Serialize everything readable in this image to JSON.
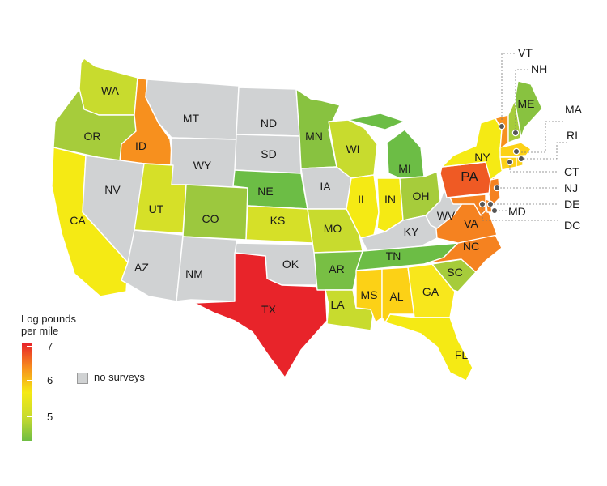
{
  "legend": {
    "title_line1": "Log pounds",
    "title_line2": "per mile",
    "ticks": [
      "7",
      "6",
      "5"
    ],
    "no_data_label": "no surveys",
    "gradient_colors": [
      "#e8242a",
      "#f7901e",
      "#f5ea14",
      "#c8db2e",
      "#6cbd45"
    ],
    "no_data_color": "#d0d2d3"
  },
  "states": {
    "WA": {
      "label": "WA",
      "color": "#c8db2e"
    },
    "OR": {
      "label": "OR",
      "color": "#a6cc3b"
    },
    "CA": {
      "label": "CA",
      "color": "#f5ea14"
    },
    "ID": {
      "label": "ID",
      "color": "#f7901e"
    },
    "NV": {
      "label": "NV",
      "color": "#d0d2d3"
    },
    "MT": {
      "label": "MT",
      "color": "#d0d2d3"
    },
    "WY": {
      "label": "WY",
      "color": "#d0d2d3"
    },
    "UT": {
      "label": "UT",
      "color": "#d6e028"
    },
    "CO": {
      "label": "CO",
      "color": "#9cc83e"
    },
    "AZ": {
      "label": "AZ",
      "color": "#d0d2d3"
    },
    "NM": {
      "label": "NM",
      "color": "#d0d2d3"
    },
    "ND": {
      "label": "ND",
      "color": "#d0d2d3"
    },
    "SD": {
      "label": "SD",
      "color": "#d0d2d3"
    },
    "NE": {
      "label": "NE",
      "color": "#6cbd45"
    },
    "KS": {
      "label": "KS",
      "color": "#d6e028"
    },
    "OK": {
      "label": "OK",
      "color": "#d0d2d3"
    },
    "TX": {
      "label": "TX",
      "color": "#e8242a"
    },
    "MN": {
      "label": "MN",
      "color": "#88c240"
    },
    "IA": {
      "label": "IA",
      "color": "#d0d2d3"
    },
    "MO": {
      "label": "MO",
      "color": "#c8db2e"
    },
    "AR": {
      "label": "AR",
      "color": "#78bf44"
    },
    "LA": {
      "label": "LA",
      "color": "#c8db2e"
    },
    "WI": {
      "label": "WI",
      "color": "#c8db2e"
    },
    "IL": {
      "label": "IL",
      "color": "#f5ea14"
    },
    "MI": {
      "label": "MI",
      "color": "#6cbd45"
    },
    "IN": {
      "label": "IN",
      "color": "#f5ea14"
    },
    "OH": {
      "label": "OH",
      "color": "#a6cc3b"
    },
    "KY": {
      "label": "KY",
      "color": "#d0d2d3"
    },
    "TN": {
      "label": "TN",
      "color": "#6cbd45"
    },
    "MS": {
      "label": "MS",
      "color": "#fcd116"
    },
    "AL": {
      "label": "AL",
      "color": "#fcd116"
    },
    "GA": {
      "label": "GA",
      "color": "#f8e71c"
    },
    "FL": {
      "label": "FL",
      "color": "#f5ea14"
    },
    "SC": {
      "label": "SC",
      "color": "#a6cc3b"
    },
    "NC": {
      "label": "NC",
      "color": "#f58220"
    },
    "VA": {
      "label": "VA",
      "color": "#f58220"
    },
    "WV": {
      "label": "WV",
      "color": "#d0d2d3"
    },
    "PA": {
      "label": "PA",
      "color": "#ef5a24"
    },
    "NY": {
      "label": "NY",
      "color": "#f5ea14"
    },
    "ME": {
      "label": "ME",
      "color": "#88c240"
    },
    "VT": {
      "label": "VT",
      "color": "#f7901e"
    },
    "NH": {
      "label": "NH",
      "color": "#a6cc3b"
    },
    "MA": {
      "label": "MA",
      "color": "#fcd116"
    },
    "RI": {
      "label": "RI",
      "color": "#fcd116"
    },
    "CT": {
      "label": "CT",
      "color": "#fcd116"
    },
    "NJ": {
      "label": "NJ",
      "color": "#f58220"
    },
    "DE": {
      "label": "DE",
      "color": "#f58220"
    },
    "MD": {
      "label": "MD",
      "color": "#f58220"
    },
    "DC": {
      "label": "DC",
      "color": "#f58220"
    }
  }
}
